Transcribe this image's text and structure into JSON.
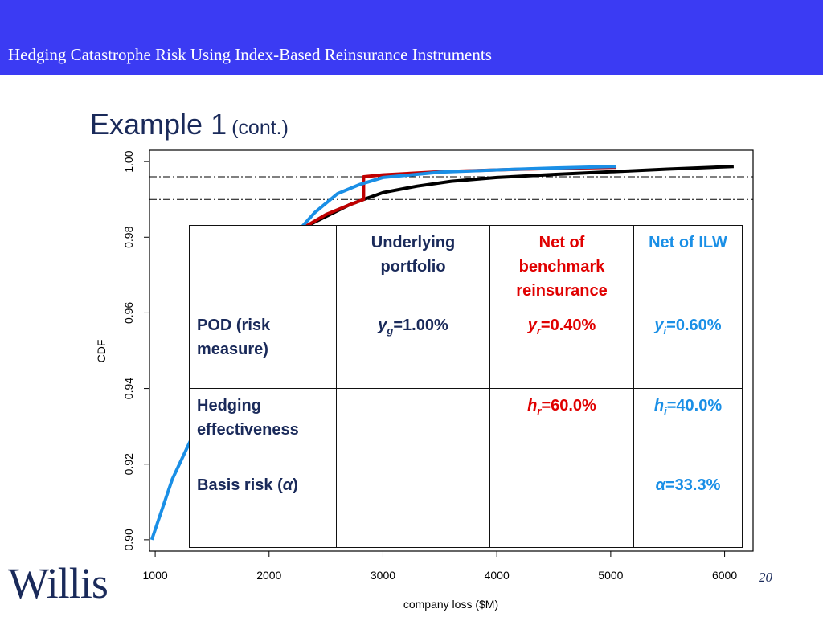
{
  "header": {
    "title": "Hedging Catastrophe Risk Using Index-Based Reinsurance Instruments"
  },
  "slide": {
    "title": "Example 1",
    "subtitle": "(cont.)",
    "page_number": "20",
    "logo_text": "Willis"
  },
  "colors": {
    "header_bg": "#3b3bf3",
    "underlying": "#000000",
    "benchmark": "#c00000",
    "ilw": "#1a8fe6"
  },
  "table": {
    "headers": [
      "",
      "Underlying portfolio",
      "Net of benchmark reinsurance",
      "Net of ILW"
    ],
    "rows": [
      {
        "label": "POD (risk measure)",
        "cells": [
          "y_g=1.00%",
          "y_r=0.40%",
          "y_i=0.60%"
        ]
      },
      {
        "label": "Hedging effectiveness",
        "cells": [
          "",
          "h_r=60.0%",
          "h_i=40.0%"
        ]
      },
      {
        "label": "Basis risk (α)",
        "cells": [
          "",
          "",
          "α=33.3%"
        ]
      }
    ]
  },
  "chart_data": {
    "type": "line",
    "xlabel": "company loss ($M)",
    "ylabel": "CDF",
    "xlim": [
      950,
      6250
    ],
    "ylim": [
      0.897,
      1.003
    ],
    "x_ticks": [
      1000,
      2000,
      3000,
      4000,
      5000,
      6000
    ],
    "x_tick_labels": [
      "1000",
      "2000",
      "3000",
      "4000",
      "5000",
      "6000"
    ],
    "y_ticks": [
      0.9,
      0.92,
      0.94,
      0.96,
      0.98,
      1.0
    ],
    "y_tick_labels": [
      "0.90",
      "0.92",
      "0.94",
      "0.96",
      "0.98",
      "1.00"
    ],
    "reference_lines_y": [
      0.99,
      0.996
    ],
    "series": [
      {
        "key": "underlying",
        "color": "#000000",
        "points": [
          [
            2300,
            0.9825
          ],
          [
            2500,
            0.9855
          ],
          [
            2700,
            0.9885
          ],
          [
            2830,
            0.99
          ],
          [
            3000,
            0.9918
          ],
          [
            3300,
            0.9935
          ],
          [
            3600,
            0.9948
          ],
          [
            4000,
            0.9958
          ],
          [
            4500,
            0.9966
          ],
          [
            5000,
            0.9973
          ],
          [
            5500,
            0.998
          ],
          [
            6080,
            0.9987
          ]
        ]
      },
      {
        "key": "benchmark",
        "color": "#c00000",
        "points": [
          [
            2300,
            0.9825
          ],
          [
            2500,
            0.986
          ],
          [
            2700,
            0.9885
          ],
          [
            2830,
            0.99
          ],
          [
            2830,
            0.996
          ],
          [
            3000,
            0.9965
          ],
          [
            3500,
            0.9973
          ],
          [
            4000,
            0.9978
          ],
          [
            4500,
            0.9982
          ],
          [
            5050,
            0.9985
          ]
        ]
      },
      {
        "key": "ilw",
        "color": "#1a8fe6",
        "points": [
          [
            970,
            0.9
          ],
          [
            1150,
            0.916
          ],
          [
            1400,
            0.932
          ],
          [
            1700,
            0.95
          ],
          [
            2000,
            0.966
          ],
          [
            2250,
            0.9815
          ],
          [
            2400,
            0.9865
          ],
          [
            2600,
            0.9915
          ],
          [
            2800,
            0.994
          ],
          [
            3000,
            0.9958
          ],
          [
            3500,
            0.9972
          ],
          [
            4000,
            0.9978
          ],
          [
            4500,
            0.9983
          ],
          [
            5050,
            0.9987
          ]
        ]
      }
    ]
  }
}
